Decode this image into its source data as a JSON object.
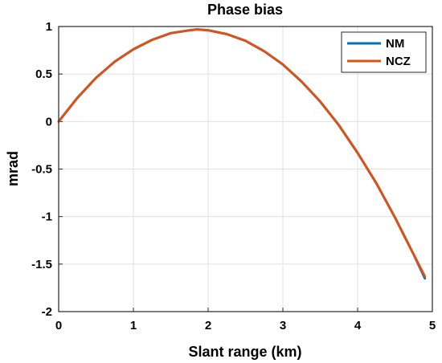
{
  "chart_data": {
    "type": "line",
    "title": "Phase bias",
    "xlabel": "Slant range (km)",
    "ylabel": "mrad",
    "xlim": [
      0,
      5
    ],
    "ylim": [
      -2,
      1
    ],
    "xticks": [
      "0",
      "1",
      "2",
      "3",
      "4",
      "5"
    ],
    "yticks": [
      "1",
      "0.5",
      "0",
      "-0.5",
      "-1",
      "-1.5",
      "-2"
    ],
    "grid": true,
    "legend_position": "top-right",
    "series": [
      {
        "name": "NM",
        "color": "#0072BD",
        "x": [
          0,
          0.25,
          0.5,
          0.75,
          1.0,
          1.25,
          1.5,
          1.75,
          1.85,
          2.0,
          2.25,
          2.5,
          2.75,
          3.0,
          3.25,
          3.5,
          3.75,
          4.0,
          4.25,
          4.5,
          4.75,
          4.9
        ],
        "y": [
          0,
          0.25,
          0.46,
          0.63,
          0.76,
          0.86,
          0.93,
          0.96,
          0.97,
          0.96,
          0.92,
          0.85,
          0.74,
          0.6,
          0.42,
          0.21,
          -0.04,
          -0.33,
          -0.65,
          -1.01,
          -1.4,
          -1.65
        ]
      },
      {
        "name": "NCZ",
        "color": "#D95319",
        "x": [
          0,
          0.25,
          0.5,
          0.75,
          1.0,
          1.25,
          1.5,
          1.75,
          1.85,
          2.0,
          2.25,
          2.5,
          2.75,
          3.0,
          3.25,
          3.5,
          3.75,
          4.0,
          4.25,
          4.5,
          4.75,
          4.9
        ],
        "y": [
          0,
          0.25,
          0.46,
          0.63,
          0.76,
          0.86,
          0.93,
          0.96,
          0.97,
          0.96,
          0.92,
          0.85,
          0.74,
          0.6,
          0.42,
          0.21,
          -0.04,
          -0.33,
          -0.65,
          -1.01,
          -1.4,
          -1.63
        ]
      }
    ]
  }
}
